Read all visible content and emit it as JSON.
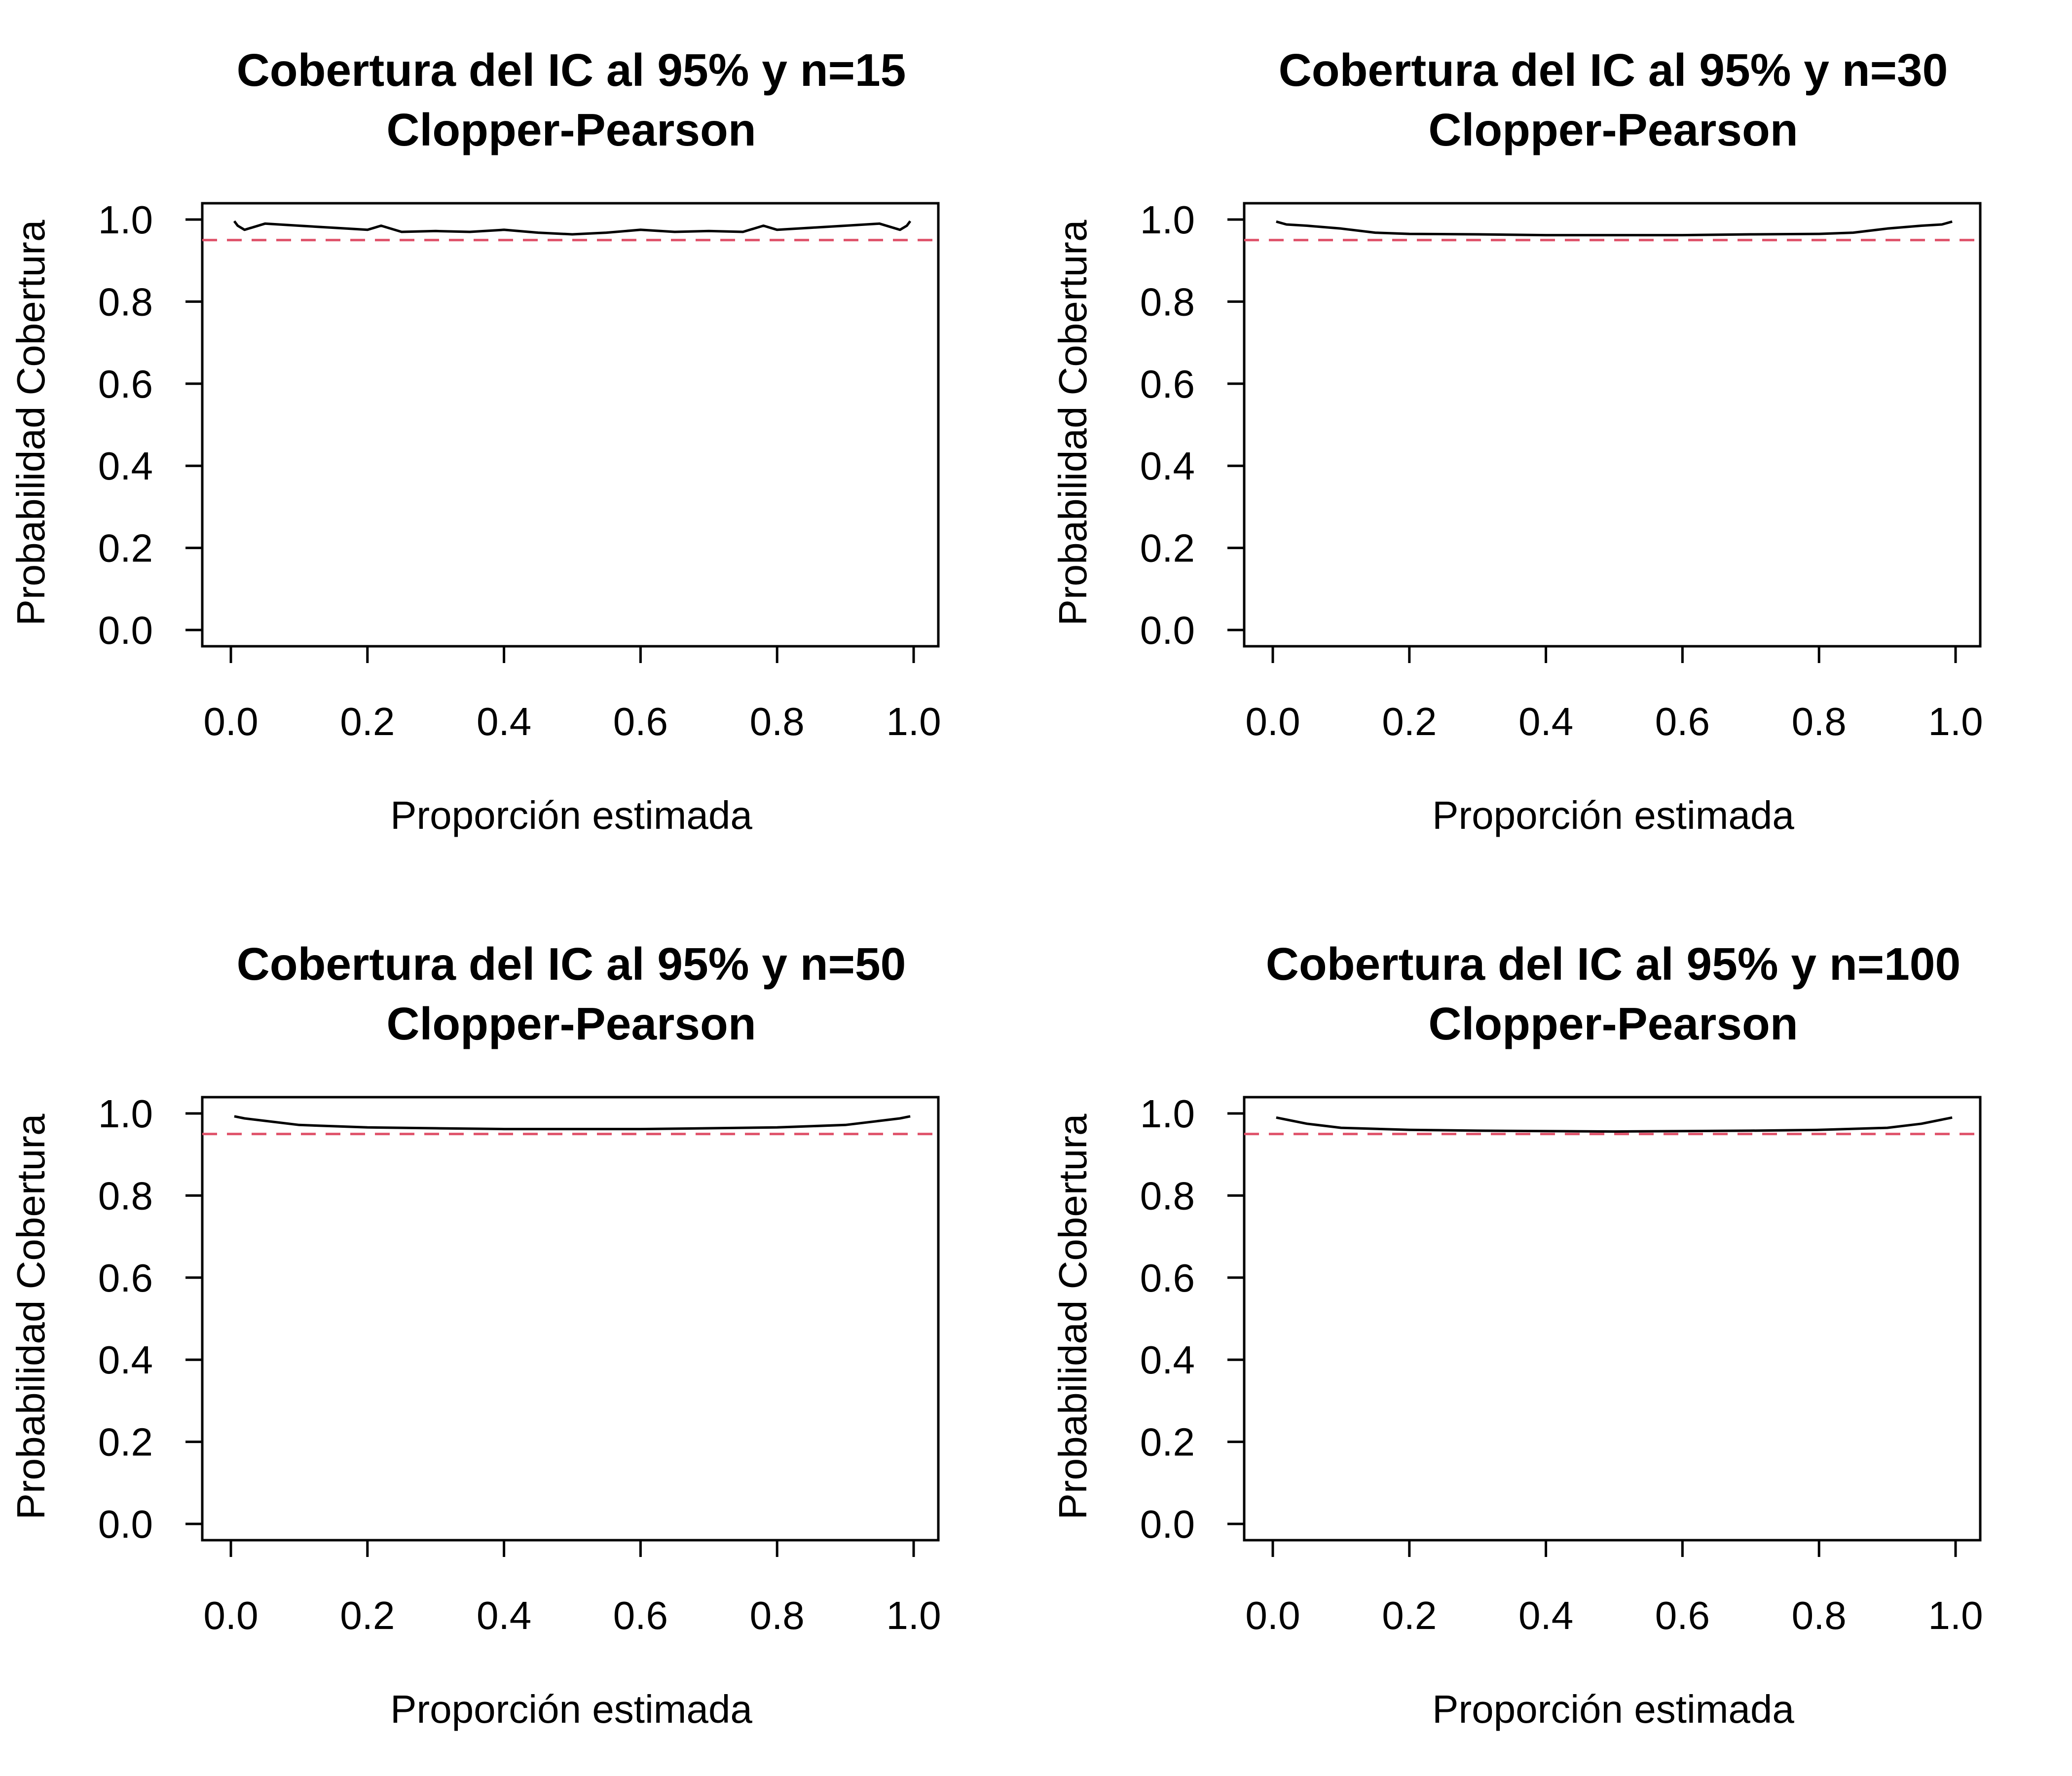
{
  "chart_data": [
    {
      "type": "line",
      "title": "Cobertura del IC al 95% y n=15",
      "subtitle": "Clopper-Pearson",
      "xlabel": "Proporción estimada",
      "ylabel": "Probabilidad Cobertura",
      "n": 15,
      "xlim": [
        0,
        1
      ],
      "ylim": [
        0,
        1
      ],
      "xticks": [
        "0.0",
        "0.2",
        "0.4",
        "0.6",
        "0.8",
        "1.0"
      ],
      "yticks": [
        "0.0",
        "0.2",
        "0.4",
        "0.6",
        "0.8",
        "1.0"
      ],
      "reference_line": {
        "y": 0.95,
        "color": "#DF536B",
        "style": "dashed"
      },
      "series": [
        {
          "color": "#000000",
          "x": [
            0.005,
            0.01,
            0.02,
            0.05,
            0.1,
            0.15,
            0.2,
            0.22,
            0.25,
            0.3,
            0.35,
            0.4,
            0.45,
            0.5,
            0.55,
            0.6,
            0.65,
            0.7,
            0.75,
            0.78,
            0.8,
            0.85,
            0.9,
            0.95,
            0.98,
            0.99,
            0.995
          ],
          "y": [
            0.996,
            0.985,
            0.975,
            0.99,
            0.985,
            0.98,
            0.975,
            0.985,
            0.97,
            0.972,
            0.97,
            0.975,
            0.968,
            0.964,
            0.968,
            0.975,
            0.97,
            0.972,
            0.97,
            0.985,
            0.975,
            0.98,
            0.985,
            0.99,
            0.975,
            0.985,
            0.996
          ]
        }
      ]
    },
    {
      "type": "line",
      "title": "Cobertura del IC al 95% y n=30",
      "subtitle": "Clopper-Pearson",
      "xlabel": "Proporción estimada",
      "ylabel": "Probabilidad Cobertura",
      "n": 30,
      "xlim": [
        0,
        1
      ],
      "ylim": [
        0,
        1
      ],
      "xticks": [
        "0.0",
        "0.2",
        "0.4",
        "0.6",
        "0.8",
        "1.0"
      ],
      "yticks": [
        "0.0",
        "0.2",
        "0.4",
        "0.6",
        "0.8",
        "1.0"
      ],
      "reference_line": {
        "y": 0.95,
        "color": "#DF536B",
        "style": "dashed"
      },
      "series": [
        {
          "color": "#000000",
          "x": [
            0.005,
            0.02,
            0.05,
            0.1,
            0.15,
            0.2,
            0.3,
            0.4,
            0.5,
            0.6,
            0.7,
            0.8,
            0.85,
            0.9,
            0.95,
            0.98,
            0.995
          ],
          "y": [
            0.995,
            0.988,
            0.985,
            0.978,
            0.968,
            0.965,
            0.964,
            0.962,
            0.962,
            0.962,
            0.964,
            0.965,
            0.968,
            0.978,
            0.985,
            0.988,
            0.995
          ]
        }
      ]
    },
    {
      "type": "line",
      "title": "Cobertura del IC al 95% y n=50",
      "subtitle": "Clopper-Pearson",
      "xlabel": "Proporción estimada",
      "ylabel": "Probabilidad Cobertura",
      "n": 50,
      "xlim": [
        0,
        1
      ],
      "ylim": [
        0,
        1
      ],
      "xticks": [
        "0.0",
        "0.2",
        "0.4",
        "0.6",
        "0.8",
        "1.0"
      ],
      "yticks": [
        "0.0",
        "0.2",
        "0.4",
        "0.6",
        "0.8",
        "1.0"
      ],
      "reference_line": {
        "y": 0.95,
        "color": "#DF536B",
        "style": "dashed"
      },
      "series": [
        {
          "color": "#000000",
          "x": [
            0.005,
            0.02,
            0.05,
            0.1,
            0.2,
            0.3,
            0.4,
            0.5,
            0.6,
            0.7,
            0.8,
            0.9,
            0.95,
            0.98,
            0.995
          ],
          "y": [
            0.993,
            0.988,
            0.982,
            0.972,
            0.966,
            0.964,
            0.962,
            0.962,
            0.962,
            0.964,
            0.966,
            0.972,
            0.982,
            0.988,
            0.993
          ]
        }
      ]
    },
    {
      "type": "line",
      "title": "Cobertura del IC al 95% y n=100",
      "subtitle": "Clopper-Pearson",
      "xlabel": "Proporción estimada",
      "ylabel": "Probabilidad Cobertura",
      "n": 100,
      "xlim": [
        0,
        1
      ],
      "ylim": [
        0,
        1
      ],
      "xticks": [
        "0.0",
        "0.2",
        "0.4",
        "0.6",
        "0.8",
        "1.0"
      ],
      "yticks": [
        "0.0",
        "0.2",
        "0.4",
        "0.6",
        "0.8",
        "1.0"
      ],
      "reference_line": {
        "y": 0.95,
        "color": "#DF536B",
        "style": "dashed"
      },
      "series": [
        {
          "color": "#000000",
          "x": [
            0.005,
            0.02,
            0.05,
            0.1,
            0.2,
            0.3,
            0.4,
            0.5,
            0.6,
            0.7,
            0.8,
            0.9,
            0.95,
            0.98,
            0.995
          ],
          "y": [
            0.99,
            0.985,
            0.975,
            0.965,
            0.96,
            0.958,
            0.957,
            0.956,
            0.957,
            0.958,
            0.96,
            0.965,
            0.975,
            0.985,
            0.99
          ]
        }
      ]
    }
  ]
}
